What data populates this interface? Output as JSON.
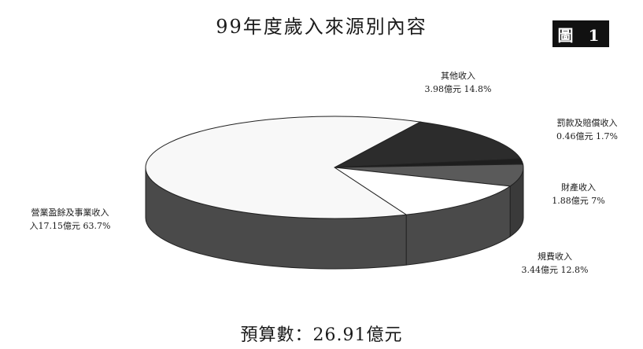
{
  "chart_data": {
    "type": "pie",
    "title": "99年度歲入來源別內容",
    "badge": "圖 1",
    "total_label": "預算數：26.91億元",
    "unit": "億元",
    "slices": [
      {
        "name": "營業盈餘及事業收入",
        "amount": 17.15,
        "percent": 63.7,
        "amount_text": "入17.15億元 63.7%",
        "color": "#f8f8f8"
      },
      {
        "name": "規費收入",
        "amount": 3.44,
        "percent": 12.8,
        "amount_text": "3.44億元 12.8%",
        "color": "#ffffff"
      },
      {
        "name": "財產收入",
        "amount": 1.88,
        "percent": 7,
        "amount_text": "1.88億元 7%",
        "color": "#5a5a5a"
      },
      {
        "name": "罰款及賠償收入",
        "amount": 0.46,
        "percent": 1.7,
        "amount_text": "0.46億元 1.7%",
        "color": "#1e1e1e"
      },
      {
        "name": "其他收入",
        "amount": 3.98,
        "percent": 14.8,
        "amount_text": "3.98億元 14.8%",
        "color": "#2c2c2c"
      }
    ],
    "side_color": "#4a4a4a"
  }
}
